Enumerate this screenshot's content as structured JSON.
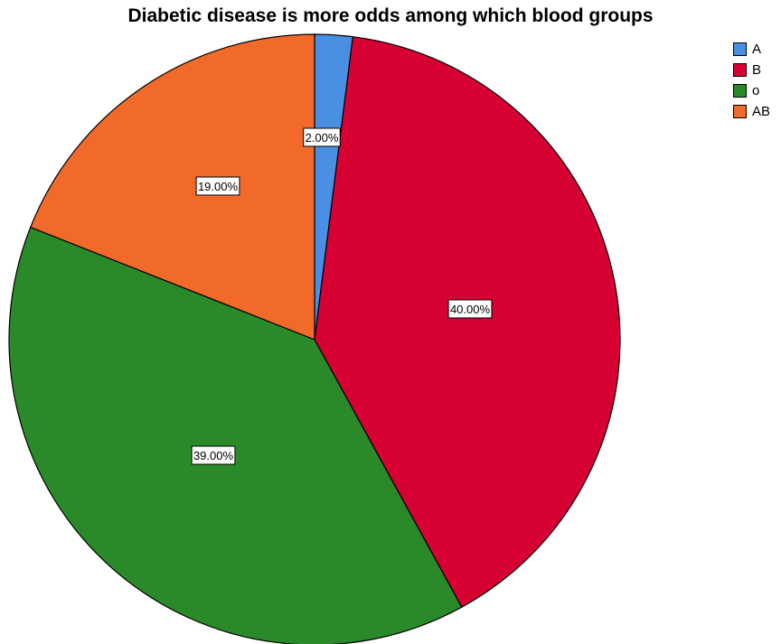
{
  "chart_data": {
    "type": "pie",
    "title": "Diabetic disease is more odds among which blood groups",
    "categories": [
      "A",
      "B",
      "o",
      "AB"
    ],
    "values": [
      2.0,
      40.0,
      39.0,
      19.0
    ],
    "labels": [
      "2.00%",
      "40.00%",
      "39.00%",
      "19.00%"
    ],
    "colors": [
      "#4a90e2",
      "#d70033",
      "#2a8a2a",
      "#f26a2a"
    ],
    "start_angle_deg": 0,
    "direction": "clockwise",
    "legend_position": "top-right"
  }
}
